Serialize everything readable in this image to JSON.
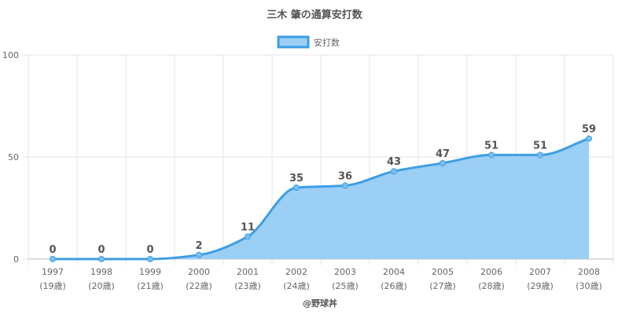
{
  "chart_data": {
    "type": "area",
    "title": "三木 肇の通算安打数",
    "credit": "@野球丼",
    "categories": [
      "1997",
      "1998",
      "1999",
      "2000",
      "2001",
      "2002",
      "2003",
      "2004",
      "2005",
      "2006",
      "2007",
      "2008"
    ],
    "ages": [
      "(19歳)",
      "(20歳)",
      "(21歳)",
      "(22歳)",
      "(23歳)",
      "(24歳)",
      "(25歳)",
      "(26歳)",
      "(27歳)",
      "(28歳)",
      "(29歳)",
      "(30歳)"
    ],
    "series": [
      {
        "name": "安打数",
        "values": [
          0,
          0,
          0,
          2,
          11,
          35,
          36,
          43,
          47,
          51,
          51,
          59
        ]
      }
    ],
    "ylim": [
      0,
      100
    ],
    "yticks": [
      0,
      50,
      100
    ],
    "grid": true,
    "legend": "top-center",
    "colors": {
      "line": "#3d9ee5",
      "fill": "#9ccff5"
    }
  }
}
